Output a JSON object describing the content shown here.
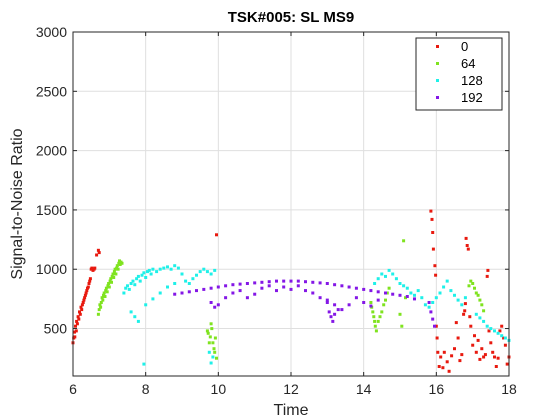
{
  "chart_data": {
    "type": "scatter",
    "title": "TSK#005: SL MS9",
    "xlabel": "Time",
    "ylabel": "Signal-to-Noise Ratio",
    "xlim": [
      6,
      18
    ],
    "ylim": [
      100,
      3000
    ],
    "xticks": [
      "6",
      "8",
      "10",
      "12",
      "14",
      "16",
      "18"
    ],
    "yticks": [
      "500",
      "1000",
      "1500",
      "2000",
      "2500",
      "3000"
    ],
    "grid": true,
    "legend_position": "top-right",
    "series": [
      {
        "name": "0",
        "color": "#e8190f",
        "points": [
          [
            6.0,
            380
          ],
          [
            6.02,
            420
          ],
          [
            6.04,
            470
          ],
          [
            6.05,
            430
          ],
          [
            6.07,
            520
          ],
          [
            6.09,
            480
          ],
          [
            6.1,
            560
          ],
          [
            6.12,
            540
          ],
          [
            6.14,
            600
          ],
          [
            6.16,
            580
          ],
          [
            6.18,
            640
          ],
          [
            6.2,
            620
          ],
          [
            6.22,
            680
          ],
          [
            6.24,
            660
          ],
          [
            6.26,
            700
          ],
          [
            6.28,
            720
          ],
          [
            6.3,
            740
          ],
          [
            6.32,
            760
          ],
          [
            6.34,
            780
          ],
          [
            6.36,
            800
          ],
          [
            6.38,
            820
          ],
          [
            6.4,
            840
          ],
          [
            6.42,
            850
          ],
          [
            6.44,
            880
          ],
          [
            6.46,
            900
          ],
          [
            6.48,
            920
          ],
          [
            6.5,
            1000
          ],
          [
            6.52,
            1010
          ],
          [
            6.55,
            990
          ],
          [
            6.58,
            1000
          ],
          [
            6.6,
            1010
          ],
          [
            6.65,
            1120
          ],
          [
            6.7,
            1160
          ],
          [
            6.72,
            1140
          ],
          [
            9.95,
            1290
          ],
          [
            15.85,
            1490
          ],
          [
            15.88,
            1420
          ],
          [
            15.9,
            1310
          ],
          [
            15.92,
            1170
          ],
          [
            15.96,
            1030
          ],
          [
            15.98,
            950
          ],
          [
            16.0,
            520
          ],
          [
            16.02,
            420
          ],
          [
            16.04,
            300
          ],
          [
            16.08,
            180
          ],
          [
            16.12,
            260
          ],
          [
            16.18,
            170
          ],
          [
            16.22,
            300
          ],
          [
            16.3,
            220
          ],
          [
            16.35,
            140
          ],
          [
            16.42,
            270
          ],
          [
            16.5,
            330
          ],
          [
            16.55,
            550
          ],
          [
            16.6,
            420
          ],
          [
            16.65,
            230
          ],
          [
            16.7,
            280
          ],
          [
            16.75,
            620
          ],
          [
            16.78,
            650
          ],
          [
            16.8,
            710
          ],
          [
            16.82,
            1260
          ],
          [
            16.85,
            1200
          ],
          [
            16.88,
            1170
          ],
          [
            16.92,
            600
          ],
          [
            16.95,
            520
          ],
          [
            17.0,
            360
          ],
          [
            17.05,
            440
          ],
          [
            17.1,
            300
          ],
          [
            17.15,
            400
          ],
          [
            17.2,
            240
          ],
          [
            17.25,
            330
          ],
          [
            17.3,
            260
          ],
          [
            17.35,
            280
          ],
          [
            17.4,
            940
          ],
          [
            17.42,
            990
          ],
          [
            17.45,
            480
          ],
          [
            17.5,
            380
          ],
          [
            17.55,
            300
          ],
          [
            17.6,
            260
          ],
          [
            17.65,
            180
          ],
          [
            17.7,
            250
          ],
          [
            17.75,
            480
          ],
          [
            17.8,
            520
          ],
          [
            17.85,
            420
          ],
          [
            17.9,
            360
          ],
          [
            17.95,
            200
          ],
          [
            18.0,
            260
          ]
        ]
      },
      {
        "name": "64",
        "color": "#7fe31f",
        "points": [
          [
            6.7,
            620
          ],
          [
            6.72,
            660
          ],
          [
            6.74,
            700
          ],
          [
            6.76,
            680
          ],
          [
            6.78,
            720
          ],
          [
            6.8,
            760
          ],
          [
            6.82,
            740
          ],
          [
            6.84,
            780
          ],
          [
            6.86,
            800
          ],
          [
            6.88,
            770
          ],
          [
            6.9,
            820
          ],
          [
            6.92,
            840
          ],
          [
            6.94,
            810
          ],
          [
            6.96,
            860
          ],
          [
            6.98,
            880
          ],
          [
            7.0,
            850
          ],
          [
            7.02,
            900
          ],
          [
            7.04,
            920
          ],
          [
            7.06,
            890
          ],
          [
            7.08,
            940
          ],
          [
            7.1,
            960
          ],
          [
            7.12,
            930
          ],
          [
            7.14,
            980
          ],
          [
            7.16,
            1000
          ],
          [
            7.18,
            960
          ],
          [
            7.2,
            1010
          ],
          [
            7.22,
            1030
          ],
          [
            7.24,
            1000
          ],
          [
            7.26,
            1050
          ],
          [
            7.28,
            1070
          ],
          [
            7.3,
            1040
          ],
          [
            7.32,
            1060
          ],
          [
            7.35,
            1050
          ],
          [
            9.7,
            480
          ],
          [
            9.72,
            460
          ],
          [
            9.75,
            380
          ],
          [
            9.78,
            430
          ],
          [
            9.8,
            540
          ],
          [
            9.82,
            500
          ],
          [
            9.85,
            380
          ],
          [
            9.88,
            330
          ],
          [
            9.9,
            300
          ],
          [
            9.92,
            420
          ],
          [
            9.95,
            250
          ],
          [
            14.2,
            720
          ],
          [
            14.22,
            680
          ],
          [
            14.25,
            640
          ],
          [
            14.28,
            600
          ],
          [
            14.3,
            560
          ],
          [
            14.32,
            520
          ],
          [
            14.35,
            480
          ],
          [
            14.4,
            560
          ],
          [
            14.45,
            600
          ],
          [
            14.5,
            640
          ],
          [
            14.55,
            700
          ],
          [
            14.6,
            740
          ],
          [
            14.65,
            800
          ],
          [
            14.7,
            840
          ],
          [
            15.0,
            620
          ],
          [
            15.05,
            520
          ],
          [
            15.1,
            1240
          ],
          [
            15.15,
            760
          ],
          [
            16.9,
            860
          ],
          [
            16.95,
            900
          ],
          [
            17.0,
            880
          ],
          [
            17.05,
            840
          ],
          [
            17.1,
            800
          ],
          [
            17.15,
            780
          ],
          [
            17.2,
            740
          ],
          [
            17.25,
            700
          ],
          [
            17.3,
            650
          ]
        ]
      },
      {
        "name": "128",
        "color": "#1ff0e8",
        "points": [
          [
            7.4,
            800
          ],
          [
            7.45,
            840
          ],
          [
            7.5,
            860
          ],
          [
            7.55,
            830
          ],
          [
            7.6,
            880
          ],
          [
            7.65,
            900
          ],
          [
            7.7,
            870
          ],
          [
            7.75,
            920
          ],
          [
            7.8,
            940
          ],
          [
            7.85,
            900
          ],
          [
            7.9,
            950
          ],
          [
            7.95,
            970
          ],
          [
            8.0,
            930
          ],
          [
            8.05,
            980
          ],
          [
            8.1,
            990
          ],
          [
            8.15,
            960
          ],
          [
            8.2,
            1000
          ],
          [
            8.3,
            980
          ],
          [
            8.4,
            1000
          ],
          [
            8.5,
            1010
          ],
          [
            8.6,
            1020
          ],
          [
            8.7,
            1000
          ],
          [
            8.8,
            1030
          ],
          [
            8.9,
            1010
          ],
          [
            9.0,
            960
          ],
          [
            9.1,
            900
          ],
          [
            9.2,
            880
          ],
          [
            9.3,
            920
          ],
          [
            9.4,
            950
          ],
          [
            9.5,
            980
          ],
          [
            9.6,
            1000
          ],
          [
            9.7,
            980
          ],
          [
            9.8,
            960
          ],
          [
            9.9,
            990
          ],
          [
            7.6,
            640
          ],
          [
            7.7,
            600
          ],
          [
            7.8,
            560
          ],
          [
            8.0,
            700
          ],
          [
            8.2,
            750
          ],
          [
            8.4,
            800
          ],
          [
            8.6,
            850
          ],
          [
            8.8,
            880
          ],
          [
            7.95,
            200
          ],
          [
            9.75,
            300
          ],
          [
            9.8,
            210
          ],
          [
            9.85,
            260
          ],
          [
            14.3,
            880
          ],
          [
            14.4,
            920
          ],
          [
            14.5,
            960
          ],
          [
            14.6,
            940
          ],
          [
            14.7,
            990
          ],
          [
            14.8,
            960
          ],
          [
            14.9,
            920
          ],
          [
            15.0,
            880
          ],
          [
            15.1,
            860
          ],
          [
            15.2,
            840
          ],
          [
            15.3,
            800
          ],
          [
            15.4,
            780
          ],
          [
            15.5,
            820
          ],
          [
            15.6,
            760
          ],
          [
            15.7,
            700
          ],
          [
            15.8,
            680
          ],
          [
            15.9,
            720
          ],
          [
            16.0,
            760
          ],
          [
            16.1,
            800
          ],
          [
            16.2,
            850
          ],
          [
            16.3,
            900
          ],
          [
            16.4,
            820
          ],
          [
            16.5,
            780
          ],
          [
            16.6,
            740
          ],
          [
            16.7,
            700
          ],
          [
            16.8,
            760
          ],
          [
            17.1,
            620
          ],
          [
            17.2,
            590
          ],
          [
            17.3,
            560
          ],
          [
            17.4,
            520
          ],
          [
            17.5,
            500
          ],
          [
            17.6,
            480
          ],
          [
            17.7,
            460
          ],
          [
            17.8,
            440
          ],
          [
            17.9,
            420
          ],
          [
            18.0,
            400
          ]
        ]
      },
      {
        "name": "192",
        "color": "#8417e6",
        "points": [
          [
            8.8,
            790
          ],
          [
            9.0,
            800
          ],
          [
            9.2,
            810
          ],
          [
            9.4,
            820
          ],
          [
            9.6,
            830
          ],
          [
            9.8,
            840
          ],
          [
            10.0,
            850
          ],
          [
            10.2,
            860
          ],
          [
            10.4,
            870
          ],
          [
            10.6,
            875
          ],
          [
            10.8,
            880
          ],
          [
            11.0,
            885
          ],
          [
            11.2,
            890
          ],
          [
            11.4,
            895
          ],
          [
            11.6,
            900
          ],
          [
            11.8,
            900
          ],
          [
            12.0,
            900
          ],
          [
            12.2,
            900
          ],
          [
            12.4,
            895
          ],
          [
            12.6,
            890
          ],
          [
            12.8,
            885
          ],
          [
            13.0,
            880
          ],
          [
            13.2,
            870
          ],
          [
            13.4,
            860
          ],
          [
            13.6,
            850
          ],
          [
            13.8,
            840
          ],
          [
            14.0,
            830
          ],
          [
            14.2,
            820
          ],
          [
            14.4,
            810
          ],
          [
            14.6,
            800
          ],
          [
            14.8,
            790
          ],
          [
            15.0,
            780
          ],
          [
            15.2,
            770
          ],
          [
            15.4,
            750
          ],
          [
            9.8,
            720
          ],
          [
            9.9,
            680
          ],
          [
            10.0,
            700
          ],
          [
            10.2,
            760
          ],
          [
            10.4,
            800
          ],
          [
            10.6,
            820
          ],
          [
            10.8,
            760
          ],
          [
            11.0,
            790
          ],
          [
            11.2,
            840
          ],
          [
            11.4,
            860
          ],
          [
            11.6,
            820
          ],
          [
            11.8,
            850
          ],
          [
            12.0,
            830
          ],
          [
            12.2,
            860
          ],
          [
            12.4,
            820
          ],
          [
            12.6,
            800
          ],
          [
            12.8,
            760
          ],
          [
            13.0,
            740
          ],
          [
            13.2,
            700
          ],
          [
            13.4,
            660
          ],
          [
            13.6,
            700
          ],
          [
            13.8,
            760
          ],
          [
            14.0,
            720
          ],
          [
            14.2,
            690
          ],
          [
            14.4,
            740
          ],
          [
            13.0,
            720
          ],
          [
            13.05,
            640
          ],
          [
            13.1,
            600
          ],
          [
            13.15,
            560
          ],
          [
            13.2,
            620
          ],
          [
            13.3,
            660
          ],
          [
            15.8,
            720
          ],
          [
            15.85,
            640
          ],
          [
            15.9,
            580
          ],
          [
            15.95,
            520
          ]
        ]
      }
    ]
  }
}
